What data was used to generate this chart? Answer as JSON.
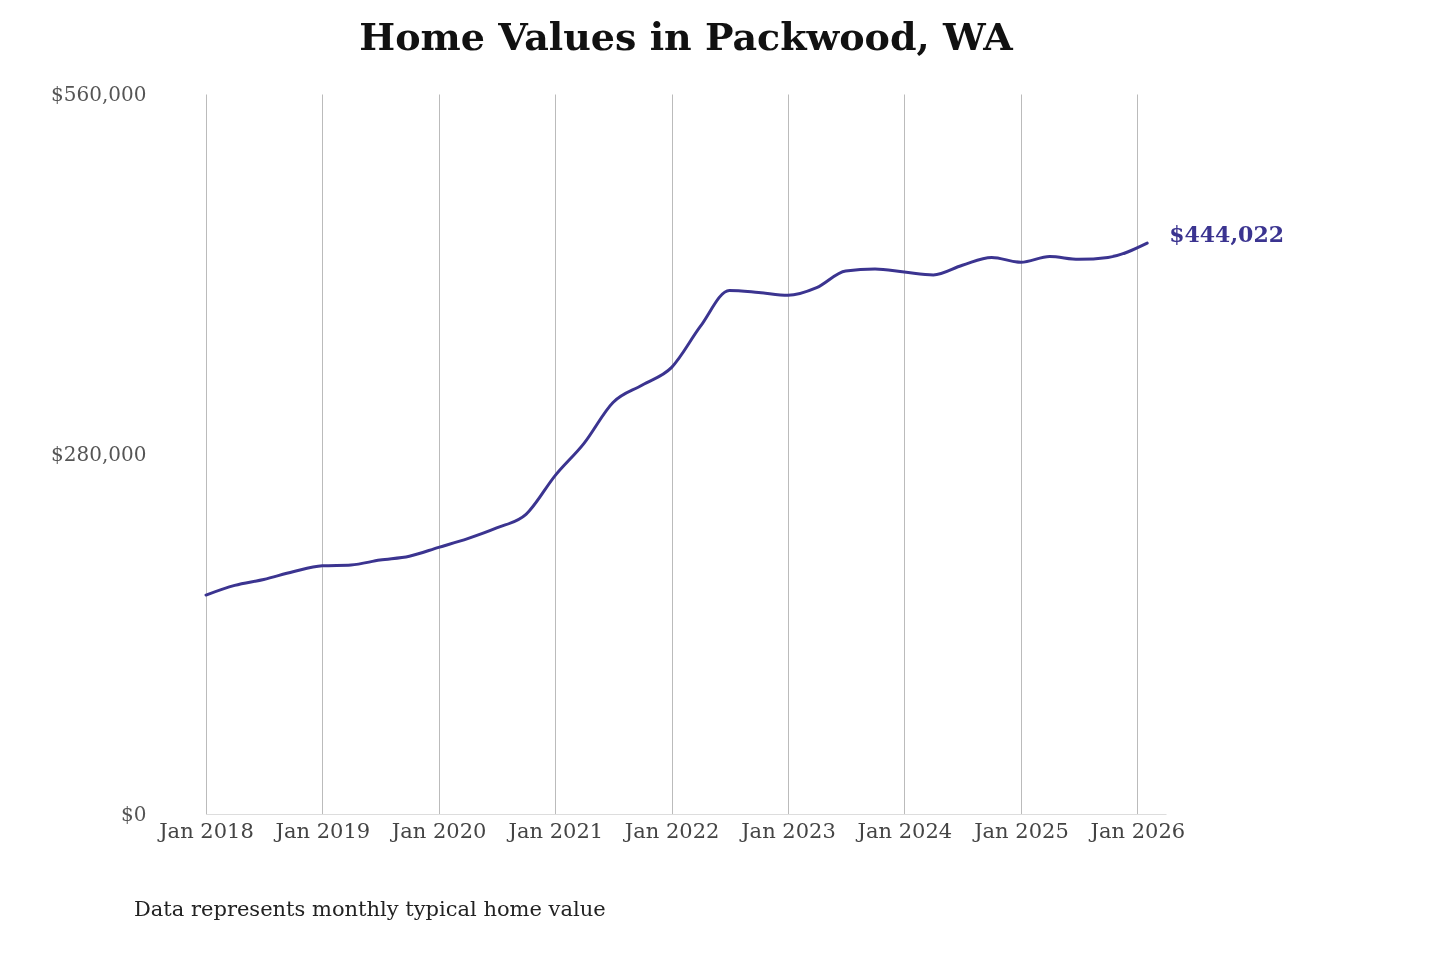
{
  "chart_data": {
    "type": "line",
    "title": "Home Values in Packwood, WA",
    "x": [
      "2018-01",
      "2018-04",
      "2018-07",
      "2018-10",
      "2019-01",
      "2019-04",
      "2019-07",
      "2019-10",
      "2020-01",
      "2020-04",
      "2020-07",
      "2020-10",
      "2021-01",
      "2021-04",
      "2021-07",
      "2021-10",
      "2022-01",
      "2022-04",
      "2022-07",
      "2022-10",
      "2023-01",
      "2023-04",
      "2023-07",
      "2023-10",
      "2024-01",
      "2024-04",
      "2024-07",
      "2024-10",
      "2025-01",
      "2025-04",
      "2025-07",
      "2025-10",
      "2026-02"
    ],
    "series": [
      {
        "color": "#3b3490",
        "values": [
          170300,
          177800,
          182400,
          188400,
          193000,
          193700,
          197500,
          200500,
          207400,
          214200,
          222500,
          233100,
          263400,
          288300,
          320100,
          333700,
          347400,
          379200,
          407200,
          405600,
          403400,
          409400,
          422300,
          423800,
          421500,
          419300,
          426800,
          432900,
          429100,
          433600,
          431400,
          432900,
          444022
        ]
      }
    ],
    "xticks": [
      {
        "value": "2018-01",
        "label": "Jan 2018"
      },
      {
        "value": "2019-01",
        "label": "Jan 2019"
      },
      {
        "value": "2020-01",
        "label": "Jan 2020"
      },
      {
        "value": "2021-01",
        "label": "Jan 2021"
      },
      {
        "value": "2022-01",
        "label": "Jan 2022"
      },
      {
        "value": "2023-01",
        "label": "Jan 2023"
      },
      {
        "value": "2024-01",
        "label": "Jan 2024"
      },
      {
        "value": "2025-01",
        "label": "Jan 2025"
      },
      {
        "value": "2026-01",
        "label": "Jan 2026"
      }
    ],
    "xlim": [
      "2018-01",
      "2026-04"
    ],
    "ylim": [
      0,
      560000
    ],
    "yticks": [
      {
        "value": 0,
        "label": "$0"
      },
      {
        "value": 280000,
        "label": "$280,000"
      },
      {
        "value": 560000,
        "label": "$560,000"
      }
    ],
    "grid": "x",
    "marker": "none",
    "line_style": "solid",
    "annotations": [
      {
        "text": "$444,022",
        "x": "2026-02",
        "y": 444022
      },
      "Data represents monthly typical home value"
    ]
  }
}
